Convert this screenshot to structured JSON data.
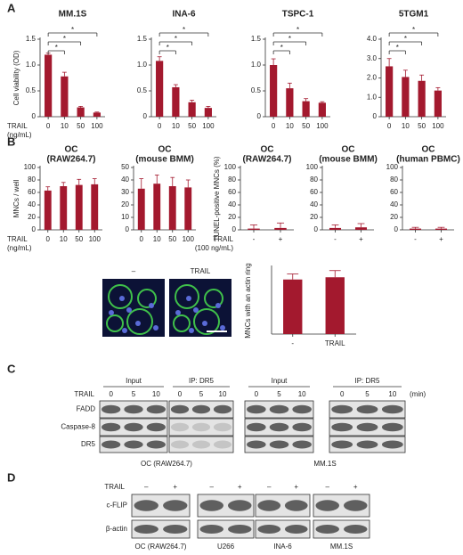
{
  "panel_labels": [
    "A",
    "B",
    "C",
    "D"
  ],
  "panel_a_x_label": [
    "TRAIL",
    "(ng/mL)"
  ],
  "panel_b_x_label": [
    "TRAIL",
    "(ng/mL)"
  ],
  "panel_b_tunel_x_label": [
    "TRAIL",
    "(100 ng/mL)"
  ],
  "chart_data": [
    {
      "type": "bar",
      "title": "MM.1S",
      "y_label": "Cell viability (OD)",
      "categories": [
        "0",
        "10",
        "50",
        "100"
      ],
      "values": [
        1.2,
        0.78,
        0.18,
        0.08
      ],
      "errors": [
        0.03,
        0.08,
        0.02,
        0.01
      ],
      "color": "#a3192e",
      "ylim": [
        0,
        1.5
      ],
      "yticks": [
        0,
        0.5,
        {
          "value": 1,
          "label": "1.0"
        },
        1.5
      ],
      "annotations": [
        "*",
        "*",
        "*"
      ]
    },
    {
      "type": "bar",
      "title": "INA-6",
      "categories": [
        "0",
        "10",
        "50",
        "100"
      ],
      "values": [
        1.08,
        0.57,
        0.28,
        0.17
      ],
      "errors": [
        0.08,
        0.05,
        0.04,
        0.03
      ],
      "color": "#a3192e",
      "ylim": [
        0,
        1.5
      ],
      "yticks": [
        0,
        0.5,
        {
          "value": 1,
          "label": "1.0"
        },
        1.5
      ],
      "annotations": [
        "*",
        "*",
        "*"
      ]
    },
    {
      "type": "bar",
      "title": "TSPC-1",
      "categories": [
        "0",
        "10",
        "50",
        "100"
      ],
      "values": [
        1.0,
        0.55,
        0.3,
        0.27
      ],
      "errors": [
        0.12,
        0.1,
        0.05,
        0.02
      ],
      "color": "#a3192e",
      "ylim": [
        0,
        1.5
      ],
      "yticks": [
        0,
        0.5,
        {
          "value": 1,
          "label": "1.0"
        },
        1.5
      ],
      "annotations": [
        "*",
        "*",
        "*"
      ]
    },
    {
      "type": "bar",
      "title": "5TGM1",
      "categories": [
        "0",
        "10",
        "50",
        "100"
      ],
      "values": [
        2.6,
        2.05,
        1.85,
        1.35
      ],
      "errors": [
        0.4,
        0.35,
        0.3,
        0.15
      ],
      "color": "#a3192e",
      "ylim": [
        0,
        4
      ],
      "yticks": [
        0,
        {
          "value": 1,
          "label": "1.0"
        },
        {
          "value": 2,
          "label": "2.0"
        },
        {
          "value": 3,
          "label": "3.0"
        },
        {
          "value": 4,
          "label": "4.0"
        }
      ],
      "annotations": [
        "*",
        "*",
        "*"
      ]
    },
    {
      "type": "bar",
      "title": "OC",
      "subtitle": "(RAW264.7)",
      "y_label": "MNCs / well",
      "categories": [
        "0",
        "10",
        "50",
        "100"
      ],
      "values": [
        63,
        70,
        72,
        73
      ],
      "errors": [
        6,
        6,
        9,
        9
      ],
      "color": "#a3192e",
      "ylim": [
        0,
        100
      ],
      "yticks": [
        0,
        20,
        40,
        60,
        80,
        100
      ]
    },
    {
      "type": "bar",
      "title": "OC",
      "subtitle": "(mouse BMM)",
      "categories": [
        "0",
        "10",
        "50",
        "100"
      ],
      "values": [
        33,
        37,
        35,
        34
      ],
      "errors": [
        8,
        7,
        7,
        6
      ],
      "color": "#a3192e",
      "ylim": [
        0,
        50
      ],
      "yticks": [
        0,
        10,
        20,
        30,
        40,
        50
      ]
    },
    {
      "type": "bar",
      "title": "OC",
      "subtitle": "(RAW264.7)",
      "y_label": "TUNEL-positive MNCs (%)",
      "categories": [
        "-",
        "+"
      ],
      "values": [
        2,
        3
      ],
      "errors": [
        6,
        8
      ],
      "color": "#a3192e",
      "ylim": [
        0,
        100
      ],
      "yticks": [
        0,
        20,
        40,
        60,
        80,
        100
      ]
    },
    {
      "type": "bar",
      "title": "OC",
      "subtitle": "(mouse BMM)",
      "categories": [
        "-",
        "+"
      ],
      "values": [
        3,
        4
      ],
      "errors": [
        5,
        6
      ],
      "color": "#a3192e",
      "ylim": [
        0,
        100
      ],
      "yticks": [
        0,
        20,
        40,
        60,
        80,
        100
      ]
    },
    {
      "type": "bar",
      "title": "OC",
      "subtitle": "(human PBMC)",
      "categories": [
        "-",
        "+"
      ],
      "values": [
        2,
        2
      ],
      "errors": [
        2,
        2
      ],
      "color": "#a3192e",
      "ylim": [
        0,
        100
      ],
      "yticks": [
        0,
        20,
        40,
        60,
        80,
        100
      ]
    },
    {
      "type": "bar",
      "y_label": "MNCs with an actin ring",
      "categories": [
        "-",
        "TRAIL"
      ],
      "values": [
        49,
        51
      ],
      "errors": [
        5,
        6
      ],
      "color": "#a3192e",
      "ylim": [
        0,
        60
      ]
    }
  ],
  "micrographs": {
    "labels": [
      "–",
      "TRAIL"
    ]
  },
  "panel_c": {
    "treatment": "TRAIL",
    "unit": "(min)",
    "rows": [
      "FADD",
      "Caspase-8",
      "DR5"
    ],
    "blots": [
      {
        "groups": [
          {
            "label": "Input",
            "lanes": [
              "0",
              "5",
              "10"
            ]
          },
          {
            "label": "IP: DR5",
            "lanes": [
              "0",
              "5",
              "10"
            ]
          }
        ],
        "caption": "OC (RAW264.7)"
      },
      {
        "groups": [
          {
            "label": "Input",
            "lanes": [
              "0",
              "5",
              "10"
            ]
          },
          {
            "label": "IP: DR5",
            "lanes": [
              "0",
              "5",
              "10"
            ]
          }
        ],
        "caption": "MM.1S"
      }
    ]
  },
  "panel_d": {
    "treatment": "TRAIL",
    "lanes": [
      "–",
      "+"
    ],
    "rows": [
      "c-FLIP",
      "β-actin"
    ],
    "captions": [
      "OC (RAW264.7)",
      "U266",
      "INA-6",
      "MM.1S"
    ]
  }
}
